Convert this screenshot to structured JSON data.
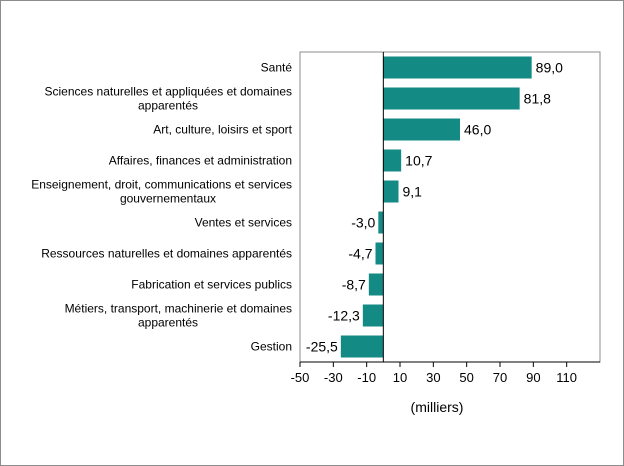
{
  "chart_data": {
    "type": "bar",
    "orientation": "horizontal",
    "categories": [
      "Santé",
      "Sciences naturelles et appliquées et domaines apparentés",
      "Art, culture, loisirs et sport",
      "Affaires, finances et administration",
      "Enseignement, droit, communications et services gouvernementaux",
      "Ventes et services",
      "Ressources naturelles et domaines apparentés",
      "Fabrication et services publics",
      "Métiers, transport, machinerie et domaines apparentés",
      "Gestion"
    ],
    "category_lines": [
      [
        "Santé"
      ],
      [
        "Sciences naturelles et appliquées et domaines",
        "apparentés"
      ],
      [
        "Art, culture, loisirs et sport"
      ],
      [
        "Affaires, finances et administration"
      ],
      [
        "Enseignement, droit, communications et services",
        "gouvernementaux"
      ],
      [
        "Ventes et services"
      ],
      [
        "Ressources naturelles et domaines apparentés"
      ],
      [
        "Fabrication et services publics"
      ],
      [
        "Métiers, transport, machinerie et domaines",
        "apparentés"
      ],
      [
        "Gestion"
      ]
    ],
    "values": [
      89.0,
      81.8,
      46.0,
      10.7,
      9.1,
      -3.0,
      -4.7,
      -8.7,
      -12.3,
      -25.5
    ],
    "value_labels": [
      "89,0",
      "81,8",
      "46,0",
      "10,7",
      "9,1",
      "-3,0",
      "-4,7",
      "-8,7",
      "-12,3",
      "-25,5"
    ],
    "xlim": [
      -50,
      130
    ],
    "xticks": [
      -50,
      -30,
      -10,
      10,
      30,
      50,
      70,
      90,
      110
    ],
    "xtick_labels": [
      "-50",
      "-30",
      "-10",
      "10",
      "30",
      "50",
      "70",
      "90",
      "110"
    ],
    "xlabel": "(milliers)",
    "title": "",
    "grid": false,
    "legend": false,
    "bar_color": "#138a84"
  }
}
